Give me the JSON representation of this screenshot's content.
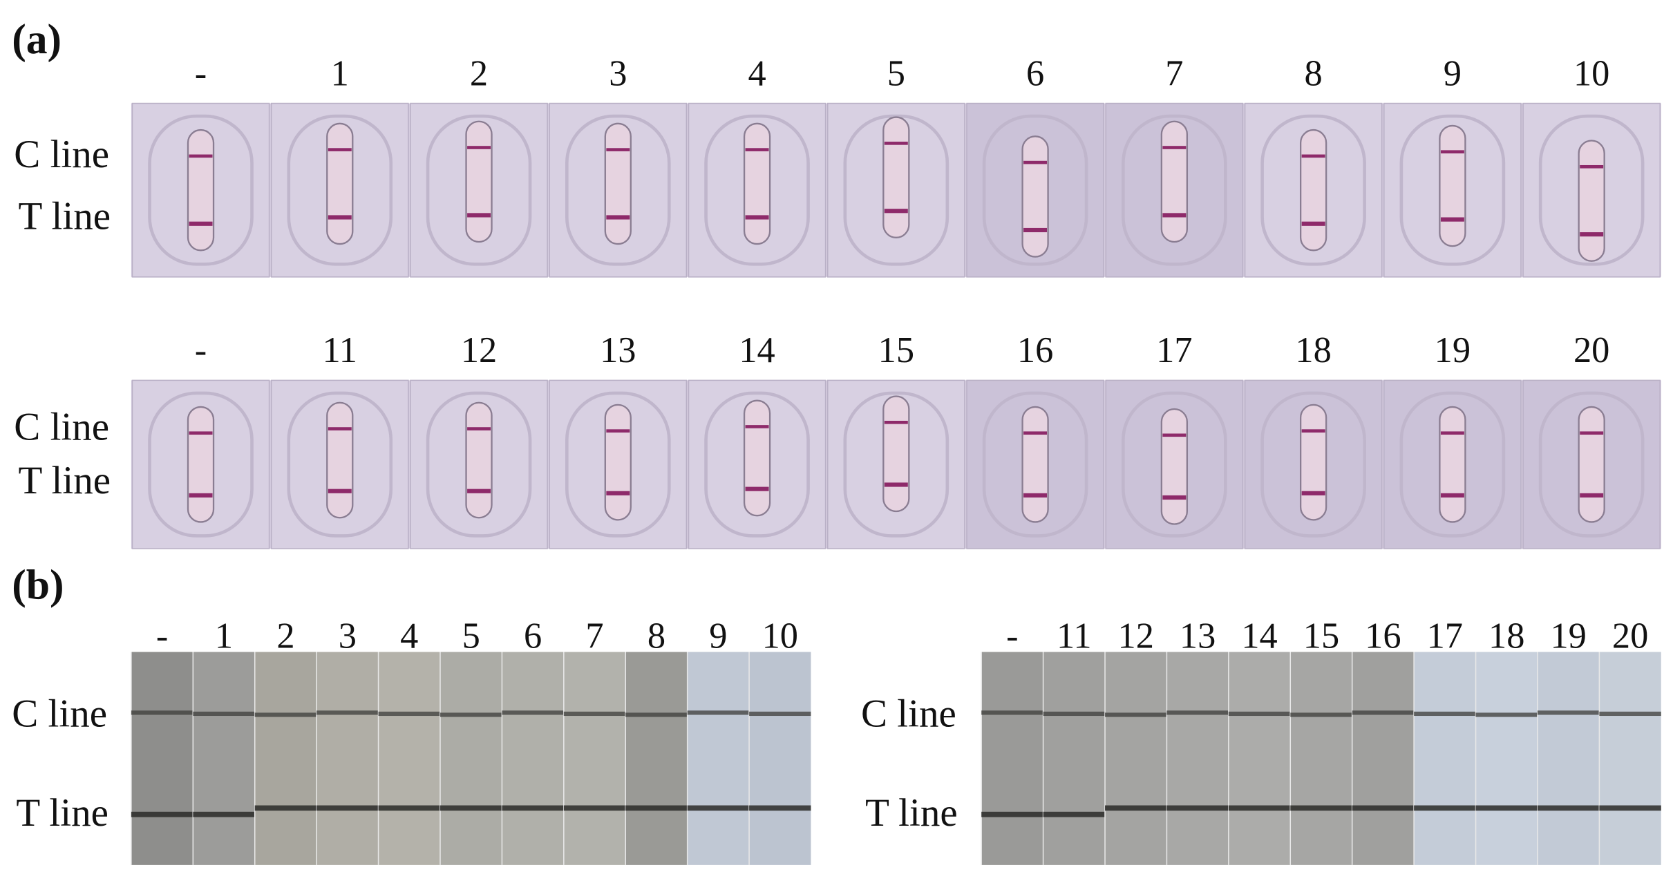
{
  "panel_a": {
    "label": "(a)",
    "rows": [
      {
        "lanes": [
          "-",
          "1",
          "2",
          "3",
          "4",
          "5",
          "6",
          "7",
          "8",
          "9",
          "10"
        ],
        "c_label": "C line",
        "t_label": "T line"
      },
      {
        "lanes": [
          "-",
          "11",
          "12",
          "13",
          "14",
          "15",
          "16",
          "17",
          "18",
          "19",
          "20"
        ],
        "c_label": "C line",
        "t_label": "T line"
      }
    ]
  },
  "panel_b": {
    "label": "(b)",
    "groups": [
      {
        "lanes": [
          "-",
          "1",
          "2",
          "3",
          "4",
          "5",
          "6",
          "7",
          "8",
          "9",
          "10"
        ],
        "c_label": "C line",
        "t_label": "T line"
      },
      {
        "lanes": [
          "-",
          "11",
          "12",
          "13",
          "14",
          "15",
          "16",
          "17",
          "18",
          "19",
          "20"
        ],
        "c_label": "C line",
        "t_label": "T line"
      }
    ]
  }
}
